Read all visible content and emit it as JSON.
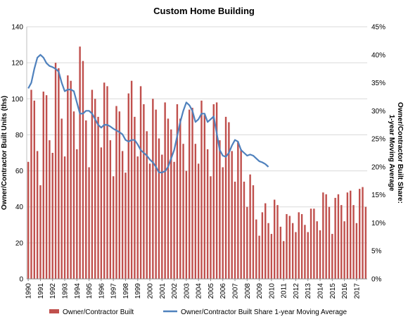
{
  "chart_data": {
    "type": "bar",
    "title": "Custom Home Building",
    "ylabel_left": "Owner/Contractor Built Units (ths)",
    "ylabel_right": "Owner/Contractor Built Share:\n1-year Moving Average",
    "ylim_left": [
      0,
      140
    ],
    "ylim_right": [
      0,
      45
    ],
    "yticks_left": [
      "0",
      "20",
      "40",
      "60",
      "80",
      "100",
      "120",
      "140"
    ],
    "yticks_right": [
      "0%",
      "5%",
      "10%",
      "15%",
      "20%",
      "25%",
      "30%",
      "35%",
      "40%",
      "45%"
    ],
    "x_tick_labels": [
      "1990",
      "1991",
      "1992",
      "1993",
      "1994",
      "1995",
      "1996",
      "1997",
      "1998",
      "1999",
      "2000",
      "2001",
      "2002",
      "2003",
      "2004",
      "2005",
      "2006",
      "2007",
      "2008",
      "2009",
      "2010",
      "2011",
      "2012",
      "2013",
      "2014",
      "2015",
      "2016",
      "2017"
    ],
    "grid": true,
    "legend_position": "bottom",
    "series": [
      {
        "name": "Owner/Contractor Built",
        "type": "bar",
        "axis": "left",
        "color": "#c0504d",
        "frequency": "quarterly",
        "start": "1990Q1",
        "values": [
          65,
          105,
          99,
          71,
          52,
          104,
          102,
          77,
          70,
          120,
          117,
          89,
          68,
          113,
          110,
          93,
          72,
          129,
          121,
          88,
          62,
          105,
          100,
          90,
          73,
          109,
          107,
          77,
          57,
          96,
          93,
          71,
          59,
          103,
          110,
          90,
          68,
          107,
          97,
          82,
          64,
          100,
          94,
          78,
          69,
          98,
          89,
          83,
          65,
          97,
          89,
          75,
          60,
          94,
          95,
          75,
          64,
          99,
          91,
          72,
          57,
          97,
          98,
          77,
          62,
          90,
          87,
          71,
          54,
          76,
          72,
          54,
          40,
          58,
          52,
          33,
          24,
          37,
          42,
          31,
          25,
          44,
          41,
          29,
          21,
          36,
          35,
          31,
          26,
          37,
          36,
          30,
          26,
          39,
          39,
          32,
          27,
          48,
          47,
          40,
          25,
          45,
          47,
          41,
          32,
          48,
          49,
          41,
          31,
          50,
          51,
          40
        ]
      },
      {
        "name": "Owner/Contractor Built Share 1-year Moving Average",
        "type": "line",
        "axis": "right",
        "color": "#4f81bd",
        "frequency": "quarterly",
        "start": "1990Q1",
        "values": [
          34.0,
          35.0,
          37.5,
          39.5,
          40.0,
          39.5,
          38.5,
          38.0,
          37.8,
          37.5,
          37.0,
          35.0,
          33.5,
          33.8,
          33.8,
          33.5,
          31.5,
          29.5,
          29.5,
          30.0,
          30.0,
          29.5,
          28.5,
          27.5,
          27.0,
          27.5,
          27.5,
          27.2,
          26.8,
          26.5,
          26.2,
          25.8,
          24.8,
          24.5,
          24.8,
          24.8,
          24.0,
          23.0,
          22.5,
          22.0,
          21.3,
          20.8,
          20.0,
          19.0,
          19.0,
          19.2,
          20.0,
          21.5,
          23.0,
          25.5,
          28.0,
          30.0,
          31.5,
          31.0,
          30.0,
          28.0,
          28.5,
          29.5,
          29.5,
          28.0,
          28.5,
          29.0,
          26.0,
          23.0,
          22.0,
          21.8,
          22.5,
          23.8,
          24.8,
          24.5,
          23.0,
          22.5,
          22.0,
          22.2,
          22.0,
          21.5,
          21.0,
          20.8,
          20.5,
          20.0
        ]
      }
    ]
  }
}
